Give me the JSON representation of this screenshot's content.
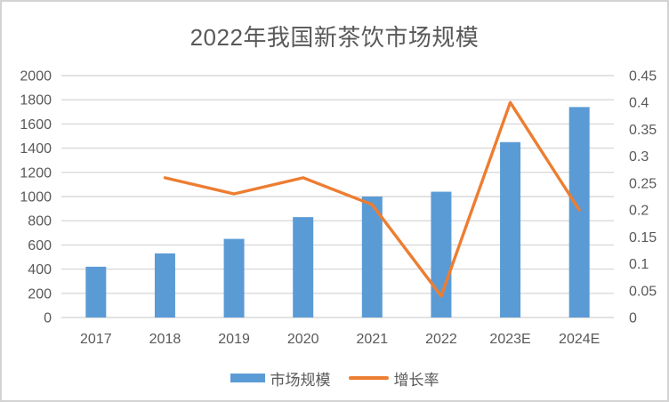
{
  "style": {
    "background": "#FFFFFF",
    "frame_border": "#D3D3D3",
    "grid_color": "#D9D9D9",
    "text_color": "#595959"
  },
  "chart_data": {
    "type": "bar",
    "subtype": "combo-bar-line",
    "title": "2022年我国新茶饮市场规模",
    "categories": [
      "2017",
      "2018",
      "2019",
      "2020",
      "2021",
      "2022",
      "2023E",
      "2024E"
    ],
    "series": [
      {
        "name": "市场规模",
        "type": "bar",
        "axis": "left",
        "color": "#5B9BD5",
        "values": [
          420,
          530,
          650,
          830,
          1000,
          1040,
          1450,
          1740
        ]
      },
      {
        "name": "增长率",
        "type": "line",
        "axis": "right",
        "color": "#ED7D31",
        "values": [
          null,
          0.26,
          0.23,
          0.26,
          0.21,
          0.04,
          0.4,
          0.2
        ]
      }
    ],
    "left_axis": {
      "min": 0,
      "max": 2000,
      "step": 200,
      "ticks": [
        "0",
        "200",
        "400",
        "600",
        "800",
        "1000",
        "1200",
        "1400",
        "1600",
        "1800",
        "2000"
      ]
    },
    "right_axis": {
      "min": 0,
      "max": 0.45,
      "step": 0.05,
      "ticks": [
        "0",
        "0.05",
        "0.1",
        "0.15",
        "0.2",
        "0.25",
        "0.3",
        "0.35",
        "0.4",
        "0.45"
      ]
    },
    "grid": true,
    "legend_position": "bottom"
  }
}
